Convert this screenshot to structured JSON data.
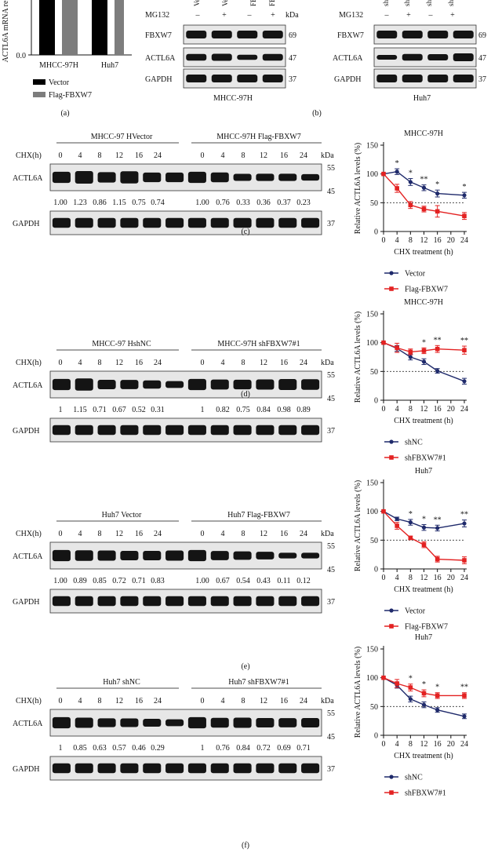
{
  "panel_a": {
    "ylabel": "ACTL6A mRNA re",
    "ytick": "0.0",
    "groups": [
      "MHCC-97H",
      "Huh7"
    ],
    "legend": [
      "Vector",
      "Flag-FBXW7"
    ],
    "label": "(a)"
  },
  "panel_b": {
    "left": {
      "col_labels": [
        "Ve",
        "Ve",
        "FB",
        "FB"
      ],
      "mg132_label": "MG132",
      "mg132": [
        "–",
        "+",
        "–",
        "+"
      ],
      "kda": "kDa",
      "rows": [
        {
          "name": "FBXW7",
          "kda": "69"
        },
        {
          "name": "ACTL6A",
          "kda": "47"
        },
        {
          "name": "GAPDH",
          "kda": "37"
        }
      ],
      "cell": "MHCC-97H"
    },
    "right": {
      "col_labels": [
        "sh",
        "sh",
        "sh",
        "sh"
      ],
      "mg132_label": "MG132",
      "mg132": [
        "–",
        "+",
        "–",
        "+"
      ],
      "rows": [
        {
          "name": "FBXW7",
          "kda": "69"
        },
        {
          "name": "ACTL6A",
          "kda": "47"
        },
        {
          "name": "GAPDH",
          "kda": "37"
        }
      ],
      "cell": "Huh7"
    },
    "label": "(b)"
  },
  "blot_panels": [
    {
      "label": "(c)",
      "group_left": "MHCC-97 HVector",
      "group_right": "MHCC-97H Flag-FBXW7",
      "chx_label": "CHX(h)",
      "timepoints": [
        "0",
        "4",
        "8",
        "12",
        "16",
        "24"
      ],
      "kda": "kDa",
      "actl6a": "ACTL6A",
      "gapdh": "GAPDH",
      "kda_55": "55",
      "kda_45": "45",
      "kda_37": "37",
      "quant_left": [
        "1.00",
        "1.23",
        "0.86",
        "1.15",
        "0.75",
        "0.74"
      ],
      "quant_right": [
        "1.00",
        "0.76",
        "0.33",
        "0.36",
        "0.37",
        "0.23"
      ]
    },
    {
      "label": "(d)",
      "group_left": "MHCC-97 HshNC",
      "group_right": "MHCC-97H shFBXW7#1",
      "chx_label": "CHX(h)",
      "timepoints": [
        "0",
        "4",
        "8",
        "12",
        "16",
        "24"
      ],
      "kda": "kDa",
      "actl6a": "ACTL6A",
      "gapdh": "GAPDH",
      "kda_55": "55",
      "kda_45": "45",
      "kda_37": "37",
      "quant_left": [
        "1",
        "1.15",
        "0.71",
        "0.67",
        "0.52",
        "0.31"
      ],
      "quant_right": [
        "1",
        "0.82",
        "0.75",
        "0.84",
        "0.98",
        "0.89"
      ]
    },
    {
      "label": "(e)",
      "group_left": "Huh7 Vector",
      "group_right": "Huh7 Flag-FBXW7",
      "chx_label": "CHX(h)",
      "timepoints": [
        "0",
        "4",
        "8",
        "12",
        "16",
        "24"
      ],
      "kda": "kDa",
      "actl6a": "ACTL6A",
      "gapdh": "GAPDH",
      "kda_55": "55",
      "kda_45": "45",
      "kda_37": "37",
      "quant_left": [
        "1.00",
        "0.89",
        "0.85",
        "0.72",
        "0.71",
        "0.83"
      ],
      "quant_right": [
        "1.00",
        "0.67",
        "0.54",
        "0.43",
        "0.11",
        "0.12"
      ]
    },
    {
      "label": "(f)",
      "group_left": "Huh7 shNC",
      "group_right": "Huh7 shFBXW7#1",
      "chx_label": "CHX(h)",
      "timepoints": [
        "0",
        "4",
        "8",
        "12",
        "16",
        "24"
      ],
      "kda": "kDa",
      "actl6a": "ACTL6A",
      "gapdh": "GAPDH",
      "kda_55": "55",
      "kda_45": "45",
      "kda_37": "37",
      "quant_left": [
        "1",
        "0.85",
        "0.63",
        "0.57",
        "0.46",
        "0.29"
      ],
      "quant_right": [
        "1",
        "0.76",
        "0.84",
        "0.72",
        "0.69",
        "0.71"
      ]
    }
  ],
  "colors": {
    "navy": "#1f2a6b",
    "red": "#e32222"
  },
  "chart_data": [
    {
      "type": "line",
      "title": "MHCC-97H",
      "xlabel": "CHX treatment (h)",
      "ylabel": "Relative ACTL6A levels (%)",
      "x": [
        0,
        4,
        8,
        12,
        16,
        24
      ],
      "xticks": [
        "0",
        "4",
        "8",
        "12",
        "16",
        "20",
        "24"
      ],
      "yticks": [
        "0",
        "50",
        "100",
        "150"
      ],
      "ylim": [
        0,
        150
      ],
      "xlim": [
        0,
        24
      ],
      "reference_line": 50,
      "series": [
        {
          "name": "Vector",
          "values": [
            100,
            104,
            86,
            76,
            66,
            63
          ],
          "errors": [
            0,
            5,
            6,
            5,
            6,
            5
          ],
          "color": "#1f2a6b"
        },
        {
          "name": "Flag-FBXW7",
          "values": [
            100,
            75,
            46,
            39,
            35,
            27
          ],
          "errors": [
            0,
            7,
            6,
            5,
            10,
            6
          ],
          "color": "#e32222"
        }
      ],
      "sig_marks": [
        "",
        "*",
        "*",
        "**",
        "*",
        "*"
      ],
      "sig_series": 0
    },
    {
      "type": "line",
      "title": "MHCC-97H",
      "xlabel": "CHX treatment (h)",
      "ylabel": "Relative ACTL6A levels (%)",
      "x": [
        0,
        4,
        8,
        12,
        16,
        24
      ],
      "xticks": [
        "0",
        "4",
        "8",
        "12",
        "16",
        "20",
        "24"
      ],
      "yticks": [
        "0",
        "50",
        "100",
        "150"
      ],
      "ylim": [
        0,
        150
      ],
      "xlim": [
        0,
        24
      ],
      "reference_line": 50,
      "series": [
        {
          "name": "shNC",
          "values": [
            100,
            90,
            75,
            67,
            51,
            33
          ],
          "errors": [
            0,
            5,
            5,
            5,
            4,
            5
          ],
          "color": "#1f2a6b"
        },
        {
          "name": "shFBXW7#1",
          "values": [
            100,
            91,
            84,
            86,
            89,
            87
          ],
          "errors": [
            0,
            8,
            5,
            5,
            6,
            7
          ],
          "color": "#e32222"
        }
      ],
      "sig_marks": [
        "",
        "",
        "",
        "*",
        "**",
        "**"
      ],
      "sig_series": 1
    },
    {
      "type": "line",
      "title": "Huh7",
      "xlabel": "CHX treatment (h)",
      "ylabel": "Relative ACTL6A levels (%)",
      "x": [
        0,
        4,
        8,
        12,
        16,
        24
      ],
      "xticks": [
        "0",
        "4",
        "8",
        "12",
        "16",
        "20",
        "24"
      ],
      "yticks": [
        "0",
        "50",
        "100",
        "150"
      ],
      "ylim": [
        0,
        150
      ],
      "xlim": [
        0,
        24
      ],
      "reference_line": 50,
      "series": [
        {
          "name": "Vector",
          "values": [
            100,
            87,
            81,
            72,
            71,
            79
          ],
          "errors": [
            0,
            3,
            5,
            5,
            5,
            6
          ],
          "color": "#1f2a6b"
        },
        {
          "name": "Flag-FBXW7",
          "values": [
            100,
            75,
            54,
            42,
            17,
            15
          ],
          "errors": [
            0,
            6,
            3,
            5,
            5,
            6
          ],
          "color": "#e32222"
        }
      ],
      "sig_marks": [
        "",
        "",
        "*",
        "*",
        "**",
        "**"
      ],
      "sig_series": 0
    },
    {
      "type": "line",
      "title": "Huh7",
      "xlabel": "CHX treatment (h)",
      "ylabel": "Relative ACTL6A levels (%)",
      "x": [
        0,
        4,
        8,
        12,
        16,
        24
      ],
      "xticks": [
        "0",
        "4",
        "8",
        "12",
        "16",
        "20",
        "24"
      ],
      "yticks": [
        "0",
        "50",
        "100",
        "150"
      ],
      "ylim": [
        0,
        150
      ],
      "xlim": [
        0,
        24
      ],
      "reference_line": 50,
      "series": [
        {
          "name": "shNC",
          "values": [
            100,
            87,
            63,
            53,
            44,
            33
          ],
          "errors": [
            0,
            5,
            5,
            5,
            4,
            4
          ],
          "color": "#1f2a6b"
        },
        {
          "name": "shFBXW7#1",
          "values": [
            100,
            90,
            83,
            73,
            69,
            69
          ],
          "errors": [
            0,
            7,
            6,
            6,
            5,
            5
          ],
          "color": "#e32222"
        }
      ],
      "sig_marks": [
        "",
        "",
        "*",
        "*",
        "*",
        "**"
      ],
      "sig_series": 1
    }
  ]
}
